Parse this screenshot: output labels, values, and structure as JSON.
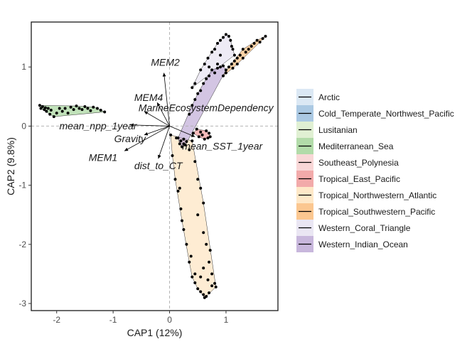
{
  "chart_data": {
    "type": "scatter",
    "subtype": "CAP ordination biplot with convex hulls per group",
    "xlabel": "CAP1 (12%)",
    "ylabel": "CAP2 (9.8%)",
    "xlim": [
      -2.45,
      1.92
    ],
    "ylim": [
      -3.12,
      1.76
    ],
    "x_ticks": [
      -2,
      -1,
      0,
      1
    ],
    "y_ticks": [
      -3,
      -2,
      -1,
      0,
      1
    ],
    "grid": false,
    "reference_lines": "dashed grey lines at x=0 and y=0",
    "legend_position": "right",
    "groups": [
      {
        "name": "Arctic",
        "color": "#cfe0f0",
        "points": []
      },
      {
        "name": "Cold_Temperate_Northwest_Pacific",
        "color": "#8fb7d9",
        "points": []
      },
      {
        "name": "Lusitanian",
        "color": "#d6ebc4",
        "points": []
      },
      {
        "name": "Mediterranean_Sea",
        "color": "#98cf8c",
        "points": [
          [
            -2.3,
            0.35
          ],
          [
            -2.28,
            0.3
          ],
          [
            -2.25,
            0.33
          ],
          [
            -2.22,
            0.28
          ],
          [
            -2.2,
            0.31
          ],
          [
            -2.18,
            0.25
          ],
          [
            -2.15,
            0.3
          ],
          [
            -2.12,
            0.2
          ],
          [
            -2.1,
            0.27
          ],
          [
            -2.05,
            0.16
          ],
          [
            -2.0,
            0.22
          ],
          [
            -1.95,
            0.3
          ],
          [
            -1.9,
            0.25
          ],
          [
            -1.85,
            0.3
          ],
          [
            -1.8,
            0.22
          ],
          [
            -1.75,
            0.32
          ],
          [
            -1.7,
            0.28
          ],
          [
            -1.65,
            0.34
          ],
          [
            -1.6,
            0.3
          ],
          [
            -1.55,
            0.28
          ],
          [
            -1.5,
            0.33
          ],
          [
            -1.45,
            0.3
          ],
          [
            -1.4,
            0.26
          ],
          [
            -1.35,
            0.32
          ],
          [
            -1.28,
            0.3
          ],
          [
            -1.22,
            0.27
          ],
          [
            -1.15,
            0.24
          ]
        ]
      },
      {
        "name": "Southeast_Polynesia",
        "color": "#f7c9c9",
        "points": []
      },
      {
        "name": "Tropical_East_Pacific",
        "color": "#ee8e8e",
        "points": [
          [
            0.42,
            -0.12
          ],
          [
            0.48,
            -0.05
          ],
          [
            0.52,
            -0.18
          ],
          [
            0.55,
            -0.1
          ],
          [
            0.58,
            -0.15
          ],
          [
            0.62,
            -0.22
          ],
          [
            0.65,
            -0.08
          ],
          [
            0.68,
            -0.2
          ],
          [
            0.7,
            -0.12
          ],
          [
            0.72,
            -0.18
          ]
        ]
      },
      {
        "name": "Tropical_Northwestern_Atlantic",
        "color": "#fde0b5",
        "points": [
          [
            0.02,
            -0.15
          ],
          [
            0.05,
            -0.5
          ],
          [
            0.1,
            -0.9
          ],
          [
            0.15,
            -1.1
          ],
          [
            0.18,
            -1.05
          ],
          [
            0.2,
            -1.4
          ],
          [
            0.22,
            -1.6
          ],
          [
            0.25,
            -1.75
          ],
          [
            0.3,
            -2.0
          ],
          [
            0.35,
            -2.3
          ],
          [
            0.4,
            -2.55
          ],
          [
            0.45,
            -2.65
          ],
          [
            0.5,
            -2.75
          ],
          [
            0.55,
            -2.8
          ],
          [
            0.6,
            -2.85
          ],
          [
            0.62,
            -2.9
          ],
          [
            0.65,
            -2.88
          ],
          [
            0.7,
            -2.82
          ],
          [
            0.75,
            -2.7
          ],
          [
            0.8,
            -2.66
          ],
          [
            0.82,
            -2.72
          ],
          [
            0.45,
            -2.5
          ],
          [
            0.38,
            -2.2
          ],
          [
            0.55,
            -2.55
          ],
          [
            0.6,
            -2.4
          ],
          [
            0.68,
            -2.6
          ],
          [
            0.75,
            -2.5
          ],
          [
            0.35,
            -0.4
          ],
          [
            0.4,
            -0.25
          ],
          [
            0.45,
            -0.6
          ],
          [
            0.5,
            -0.9
          ],
          [
            0.55,
            -1.05
          ],
          [
            0.6,
            -1.3
          ],
          [
            0.5,
            -1.5
          ],
          [
            0.6,
            -1.8
          ],
          [
            0.65,
            -2.0
          ],
          [
            0.7,
            -2.3
          ],
          [
            0.72,
            -2.1
          ],
          [
            0.12,
            -0.2
          ],
          [
            0.25,
            -0.3
          ]
        ]
      },
      {
        "name": "Tropical_Southwestern_Pacific",
        "color": "#f9b46b",
        "points": [
          [
            0.95,
            0.85
          ],
          [
            1.0,
            0.9
          ],
          [
            1.05,
            1.0
          ],
          [
            1.1,
            1.05
          ],
          [
            1.12,
            0.98
          ],
          [
            1.15,
            1.1
          ],
          [
            1.2,
            1.15
          ],
          [
            1.25,
            1.2
          ],
          [
            1.3,
            1.15
          ],
          [
            1.35,
            1.25
          ],
          [
            1.4,
            1.3
          ],
          [
            1.45,
            1.35
          ],
          [
            1.5,
            1.4
          ],
          [
            1.55,
            1.45
          ],
          [
            1.6,
            1.42
          ],
          [
            1.65,
            1.48
          ],
          [
            1.7,
            1.52
          ],
          [
            1.2,
            1.05
          ],
          [
            1.3,
            1.3
          ]
        ]
      },
      {
        "name": "Western_Coral_Triangle",
        "color": "#e3ddef",
        "points": [
          [
            0.55,
            0.95
          ],
          [
            0.62,
            1.05
          ],
          [
            0.68,
            1.15
          ],
          [
            0.75,
            1.25
          ],
          [
            0.8,
            1.3
          ],
          [
            0.85,
            1.4
          ],
          [
            0.9,
            1.45
          ],
          [
            0.95,
            1.5
          ],
          [
            1.0,
            1.55
          ],
          [
            1.05,
            1.52
          ],
          [
            1.08,
            1.45
          ],
          [
            1.1,
            1.35
          ],
          [
            1.12,
            1.3
          ],
          [
            1.15,
            1.2
          ],
          [
            0.9,
            1.2
          ],
          [
            0.7,
            1.0
          ],
          [
            0.45,
            0.72
          ],
          [
            0.4,
            0.65
          ],
          [
            0.85,
            1.05
          ]
        ]
      },
      {
        "name": "Western_Indian_Ocean",
        "color": "#b59fd0",
        "points": [
          [
            0.15,
            -0.2
          ],
          [
            0.18,
            -0.3
          ],
          [
            0.2,
            -0.25
          ],
          [
            0.22,
            -0.35
          ],
          [
            0.25,
            -0.22
          ],
          [
            0.28,
            -0.32
          ],
          [
            0.3,
            -0.26
          ],
          [
            0.35,
            0.2
          ],
          [
            0.4,
            0.35
          ],
          [
            0.45,
            0.45
          ],
          [
            0.5,
            0.55
          ],
          [
            0.55,
            0.6
          ],
          [
            0.6,
            0.72
          ],
          [
            0.65,
            0.8
          ],
          [
            0.7,
            0.85
          ],
          [
            0.75,
            0.95
          ],
          [
            0.8,
            0.9
          ],
          [
            0.85,
            0.98
          ],
          [
            0.9,
            1.0
          ],
          [
            0.95,
            1.02
          ],
          [
            1.0,
            0.95
          ]
        ]
      }
    ],
    "vectors": [
      {
        "name": "MEM2",
        "x": -0.1,
        "y": 0.9
      },
      {
        "name": "MEM4",
        "x": -0.22,
        "y": 0.4
      },
      {
        "name": "MarineEcosystemDependency",
        "x": -0.45,
        "y": 0.25
      },
      {
        "name": "mean_npp_1year",
        "x": -0.7,
        "y": 0.02
      },
      {
        "name": "Gravity",
        "x": -0.45,
        "y": -0.15
      },
      {
        "name": "MEM1",
        "x": -0.8,
        "y": -0.42
      },
      {
        "name": "dist_to_CT",
        "x": -0.2,
        "y": -0.55
      },
      {
        "name": "mean_SST_1year",
        "x": 0.45,
        "y": -0.18
      }
    ]
  }
}
